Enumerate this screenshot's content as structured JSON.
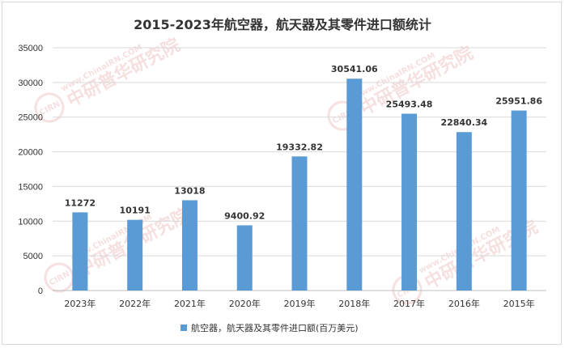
{
  "chart_data": {
    "type": "bar",
    "title": "2015-2023年航空器，航天器及其零件进口额统计",
    "categories": [
      "2023年",
      "2022年",
      "2021年",
      "2020年",
      "2019年",
      "2018年",
      "2017年",
      "2016年",
      "2015年"
    ],
    "series": [
      {
        "name": "航空器，航天器及其零件进口额(百万美元)",
        "values": [
          11272,
          10191,
          13018,
          9400.92,
          19332.82,
          30541.06,
          25493.48,
          22840.34,
          25951.86
        ],
        "labels": [
          "11272",
          "10191",
          "13018",
          "9400.92",
          "19332.82",
          "30541.06",
          "25493.48",
          "22840.34",
          "25951.86"
        ]
      }
    ],
    "yticks": [
      "0",
      "5000",
      "10000",
      "15000",
      "20000",
      "25000",
      "30000",
      "35000"
    ],
    "ylim": [
      0,
      35000
    ],
    "grid": true,
    "legend_position": "bottom",
    "bar_color": "#5b9bd5"
  },
  "watermark": {
    "cn": "中研普华研究院",
    "en": "www.ChinaIRN.COM",
    "logo": "CIRN"
  }
}
